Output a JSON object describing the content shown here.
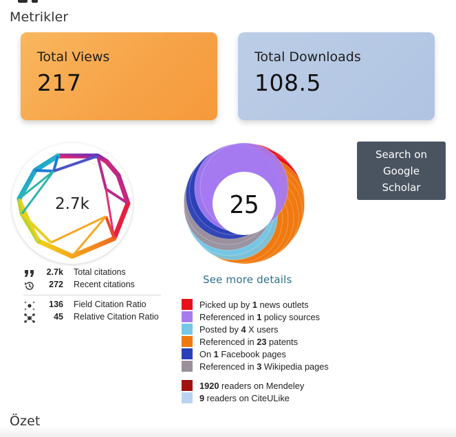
{
  "metrics": {
    "title": "Metrikler"
  },
  "cards": {
    "views": {
      "label": "Total Views",
      "value": "217"
    },
    "downloads": {
      "label": "Total Downloads",
      "value": "108.5"
    }
  },
  "dimensions": {
    "badge_value": "2.7k",
    "rows": [
      {
        "icon": "quote-icon",
        "value": "2.7k",
        "label": "Total citations"
      },
      {
        "icon": "history-icon",
        "value": "272",
        "label": "Recent citations"
      },
      {
        "icon": "field-ratio-icon",
        "value": "136",
        "label": "Field Citation Ratio"
      },
      {
        "icon": "relative-ratio-icon",
        "value": "45",
        "label": "Relative Citation Ratio"
      }
    ]
  },
  "altmetric": {
    "score": "25",
    "see_more": "See more details",
    "legend": [
      {
        "prefix": "Picked up by ",
        "count": "1",
        "suffix": " news outlets",
        "color": "#e8101a"
      },
      {
        "prefix": "Referenced in ",
        "count": "1",
        "suffix": " policy sources",
        "color": "#a67bf0"
      },
      {
        "prefix": "Posted by ",
        "count": "4",
        "suffix": " X users",
        "color": "#74c7e6"
      },
      {
        "prefix": "Referenced in ",
        "count": "23",
        "suffix": " patents",
        "color": "#f07a10"
      },
      {
        "prefix": "On ",
        "count": "1",
        "suffix": " Facebook pages",
        "color": "#2a40b8"
      },
      {
        "prefix": "Referenced in ",
        "count": "3",
        "suffix": " Wikipedia pages",
        "color": "#9b8f9c"
      },
      {
        "prefix": "",
        "count": "1920",
        "suffix": " readers on Mendeley",
        "color": "#a31010"
      },
      {
        "prefix": "",
        "count": "9",
        "suffix": " readers on CiteULike",
        "color": "#b8d4f2"
      }
    ]
  },
  "scholar": {
    "line1": "Search on",
    "line2": "Google",
    "line3": "Scholar"
  },
  "summary": {
    "title": "Özet"
  }
}
